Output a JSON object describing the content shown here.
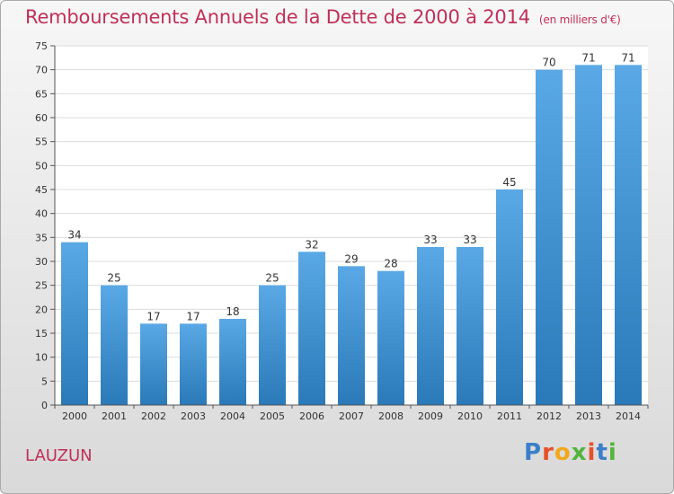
{
  "header": {
    "title": "Remboursements Annuels de la Dette de 2000 à 2014",
    "unit": "(en milliers d'€)"
  },
  "footer": {
    "commune": "LAUZUN",
    "logo_letters": [
      "P",
      "r",
      "o",
      "x",
      "i",
      "t",
      "i"
    ]
  },
  "colors": {
    "title": "#c03058",
    "bar_light": "#5aa9e6",
    "bar_dark": "#2a79b8",
    "logo": [
      "#3a7fc8",
      "#e8502a",
      "#f2a81c",
      "#52b43c",
      "#e8502a",
      "#3a7fc8",
      "#52b43c"
    ]
  },
  "chart_data": {
    "type": "bar",
    "title": "Remboursements Annuels de la Dette de 2000 à 2014",
    "subtitle": "(en milliers d'€)",
    "xlabel": "",
    "ylabel": "",
    "categories": [
      "2000",
      "2001",
      "2002",
      "2003",
      "2004",
      "2005",
      "2006",
      "2007",
      "2008",
      "2009",
      "2010",
      "2011",
      "2012",
      "2013",
      "2014"
    ],
    "values": [
      34,
      25,
      17,
      17,
      18,
      25,
      32,
      29,
      28,
      33,
      33,
      45,
      70,
      71,
      71
    ],
    "ylim": [
      0,
      75
    ],
    "yticks": [
      0,
      5,
      10,
      15,
      20,
      25,
      30,
      35,
      40,
      45,
      50,
      55,
      60,
      65,
      70,
      75
    ],
    "grid": true,
    "data_labels": true
  }
}
